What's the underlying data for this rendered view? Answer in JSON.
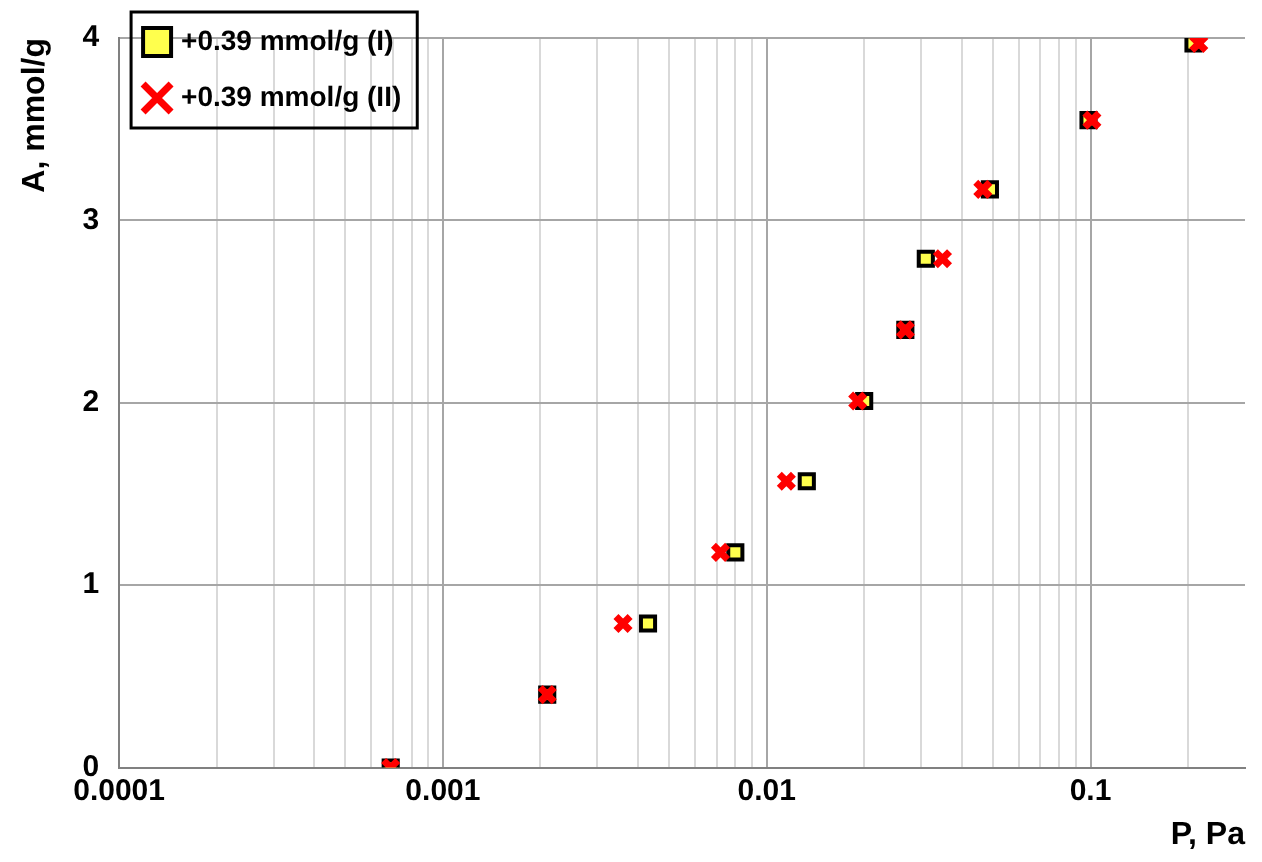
{
  "chart_data": {
    "type": "scatter",
    "xlabel": "P, Pa",
    "ylabel": "A, mmol/g",
    "log": "x",
    "grid": true,
    "legend": "top left",
    "xlim": [
      0.0001,
      0.3
    ],
    "ylim": [
      0,
      4
    ],
    "yticks": [
      0,
      1,
      2,
      3,
      4
    ],
    "xticks": [
      0.0001,
      {
        "value": 0.0002,
        "label": null
      },
      {
        "value": 0.0003,
        "label": null
      },
      {
        "value": 0.0004,
        "label": null
      },
      {
        "value": 0.0005,
        "label": null
      },
      {
        "value": 0.0006,
        "label": null
      },
      {
        "value": 0.0007,
        "label": null
      },
      {
        "value": 0.0008,
        "label": null
      },
      {
        "value": 0.0009,
        "label": null
      },
      0.001,
      {
        "value": 0.002,
        "label": null
      },
      {
        "value": 0.003,
        "label": null
      },
      {
        "value": 0.004,
        "label": null
      },
      {
        "value": 0.005,
        "label": null
      },
      {
        "value": 0.006,
        "label": null
      },
      {
        "value": 0.007,
        "label": null
      },
      {
        "value": 0.008,
        "label": null
      },
      {
        "value": 0.009,
        "label": null
      },
      0.01,
      {
        "value": 0.02,
        "label": null
      },
      {
        "value": 0.03,
        "label": null
      },
      {
        "value": 0.04,
        "label": null
      },
      {
        "value": 0.05,
        "label": null
      },
      {
        "value": 0.06,
        "label": null
      },
      {
        "value": 0.07,
        "label": null
      },
      {
        "value": 0.08,
        "label": null
      },
      {
        "value": 0.09,
        "label": null
      },
      0.1,
      {
        "value": 0.2,
        "label": null
      }
    ],
    "series": [
      {
        "name": "+0.39 mmol/g (I)",
        "color": "#ffff4d",
        "marker": "square",
        "x": [
          0.00069,
          0.0021,
          0.0043,
          0.008,
          0.0133,
          0.02,
          0.0268,
          0.031,
          0.0489,
          0.0986,
          0.208
        ],
        "values": [
          0,
          0.4,
          0.79,
          1.18,
          1.57,
          2.01,
          2.4,
          2.79,
          3.17,
          3.55,
          3.97
        ]
      },
      {
        "name": "+0.39 mmol/g (II)",
        "color": "#ff0000",
        "marker": "cross",
        "x": [
          0.00069,
          0.0021,
          0.0036,
          0.0072,
          0.0115,
          0.0191,
          0.0268,
          0.0349,
          0.0465,
          0.101,
          0.216
        ],
        "values": [
          0,
          0.4,
          0.79,
          1.18,
          1.57,
          2.01,
          2.4,
          2.79,
          3.17,
          3.55,
          3.97
        ]
      }
    ]
  }
}
